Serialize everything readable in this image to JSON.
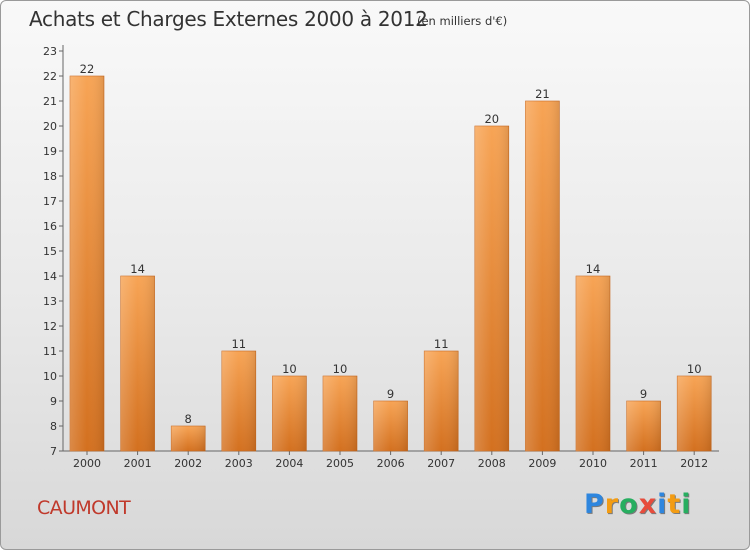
{
  "title": "Achats et Charges Externes 2000 à 2012",
  "subtitle": "(en milliers d'€)",
  "place": "CAUMONT",
  "logo": {
    "text": "Proxiti",
    "letters": [
      {
        "char": "P",
        "color": "#2e86de"
      },
      {
        "char": "r",
        "color": "#f39c12"
      },
      {
        "char": "o",
        "color": "#27ae60"
      },
      {
        "char": "x",
        "color": "#e74c3c"
      },
      {
        "char": "i",
        "color": "#2e86de"
      },
      {
        "char": "t",
        "color": "#f39c12"
      },
      {
        "char": "i",
        "color": "#27ae60"
      }
    ]
  },
  "chart_data": {
    "type": "bar",
    "title": "Achats et Charges Externes 2000 à 2012",
    "categories": [
      "2000",
      "2001",
      "2002",
      "2003",
      "2004",
      "2005",
      "2006",
      "2007",
      "2008",
      "2009",
      "2010",
      "2011",
      "2012"
    ],
    "values": [
      22,
      14,
      8,
      11,
      10,
      10,
      9,
      11,
      20,
      21,
      14,
      9,
      10
    ],
    "ylim": [
      7,
      23
    ],
    "yticks": [
      7,
      8,
      9,
      10,
      11,
      12,
      13,
      14,
      15,
      16,
      17,
      18,
      19,
      20,
      21,
      22,
      23
    ],
    "grid": false,
    "bar_color": "#f0913a"
  }
}
